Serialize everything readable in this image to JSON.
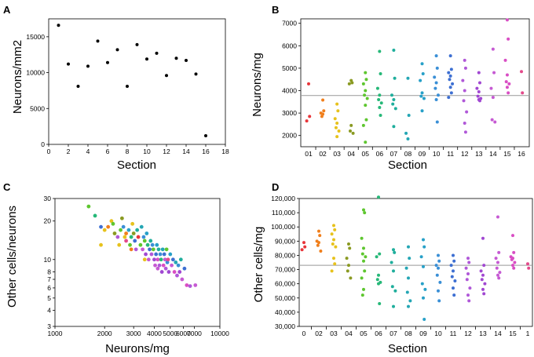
{
  "chart_data": [
    {
      "panel": "A",
      "type": "scatter",
      "xlabel": "Section",
      "ylabel": "Neurons/mm2",
      "xlim": [
        0,
        18
      ],
      "ylim": [
        0,
        17500
      ],
      "x_ticks": [
        "0",
        "2",
        "4",
        "6",
        "8",
        "10",
        "12",
        "14",
        "16",
        "18"
      ],
      "y_ticks": [
        "0",
        "5000",
        "10000",
        "15000"
      ],
      "color": "#000000",
      "x": [
        1,
        2,
        3,
        4,
        5,
        6,
        7,
        8,
        9,
        10,
        11,
        12,
        13,
        14,
        15,
        16
      ],
      "y": [
        16600,
        11200,
        8100,
        10900,
        14400,
        11400,
        13200,
        8100,
        13900,
        11900,
        12700,
        9600,
        12000,
        11700,
        9800,
        1200
      ]
    },
    {
      "panel": "B",
      "type": "scatter",
      "xlabel": "Section",
      "ylabel": "Neurons/mg",
      "ylim": [
        1500,
        7200
      ],
      "y_ticks": [
        "2000",
        "3000",
        "4000",
        "5000",
        "6000",
        "7000"
      ],
      "reference_line": 3780,
      "categories": [
        "01",
        "02",
        "03",
        "04",
        "05",
        "06",
        "07",
        "08",
        "09",
        "10",
        "11",
        "12",
        "13",
        "14",
        "15",
        "16"
      ],
      "colors": [
        "#e8353a",
        "#f07f1c",
        "#e7c21c",
        "#8a9a22",
        "#5ec62f",
        "#26b878",
        "#1fae9c",
        "#24a6b4",
        "#27a0c8",
        "#3a8fd6",
        "#3d6fd2",
        "#b058d8",
        "#a148d2",
        "#c65ad3",
        "#d94ec4",
        "#e34a8b"
      ],
      "series": [
        {
          "name": "01",
          "values": [
            4300,
            2850,
            2650
          ]
        },
        {
          "name": "02",
          "values": [
            3580,
            3100,
            3000,
            2950,
            2850
          ]
        },
        {
          "name": "03",
          "values": [
            3400,
            3100,
            2750,
            2550,
            2350,
            2200,
            1950
          ]
        },
        {
          "name": "04",
          "values": [
            4450,
            4350,
            4300,
            2450,
            2200,
            2100
          ]
        },
        {
          "name": "05",
          "values": [
            4800,
            4500,
            4300,
            4000,
            3800,
            3650,
            3350,
            2700,
            2450,
            1700
          ]
        },
        {
          "name": "06",
          "values": [
            5750,
            4750,
            4100,
            3800,
            3600,
            3450,
            3250,
            2900
          ]
        },
        {
          "name": "07",
          "values": [
            5800,
            4550,
            3800,
            3600,
            3400,
            3200,
            2400
          ]
        },
        {
          "name": "08",
          "values": [
            4550,
            2900,
            2100,
            1850
          ]
        },
        {
          "name": "09",
          "values": [
            5200,
            4750,
            4450,
            3900,
            3750,
            3650,
            3100
          ]
        },
        {
          "name": "10",
          "values": [
            5550,
            5000,
            4600,
            4350,
            4100,
            3800,
            3600,
            2600
          ]
        },
        {
          "name": "11",
          "values": [
            5550,
            4950,
            4800,
            4650,
            4500,
            4300,
            4150,
            3900,
            3700
          ]
        },
        {
          "name": "12",
          "values": [
            5350,
            5000,
            4450,
            4000,
            3550,
            3050,
            2550,
            2150
          ]
        },
        {
          "name": "13",
          "values": [
            4800,
            4350,
            4100,
            3950,
            3750,
            3650,
            3600,
            3550
          ]
        },
        {
          "name": "14",
          "values": [
            5850,
            4800,
            4100,
            3700,
            2700,
            2600
          ]
        },
        {
          "name": "15",
          "values": [
            7150,
            6300,
            5350,
            4700,
            4400,
            4300,
            4150,
            3900
          ]
        },
        {
          "name": "16",
          "values": [
            4850,
            3900
          ]
        }
      ]
    },
    {
      "panel": "C",
      "type": "scatter",
      "xscale": "log",
      "yscale": "log",
      "xlabel": "Neurons/mg",
      "ylabel": "Other cells/neurons",
      "xlim": [
        1000,
        10000
      ],
      "ylim": [
        3,
        30
      ],
      "x_ticks": [
        "1000",
        "2000",
        "3000",
        "4000",
        "5000",
        "6000",
        "7000",
        "10000"
      ],
      "y_ticks": [
        "3",
        "4",
        "5",
        "6",
        "7",
        "8",
        "10",
        "20",
        "30"
      ],
      "points": [
        [
          1600,
          26,
          "#5ec62f"
        ],
        [
          1750,
          22,
          "#26b878"
        ],
        [
          1900,
          18,
          "#3d6fd2"
        ],
        [
          2000,
          17,
          "#e7c21c"
        ],
        [
          1900,
          13,
          "#e7c21c"
        ],
        [
          2100,
          18,
          "#f07f1c"
        ],
        [
          2200,
          20,
          "#e7c21c"
        ],
        [
          2250,
          19,
          "#5ec62f"
        ],
        [
          2300,
          16,
          "#8a9a22"
        ],
        [
          2400,
          15,
          "#b058d8"
        ],
        [
          2450,
          13,
          "#e7c21c"
        ],
        [
          2500,
          17,
          "#5ec62f"
        ],
        [
          2550,
          21,
          "#8a9a22"
        ],
        [
          2600,
          18,
          "#3a8fd6"
        ],
        [
          2650,
          15,
          "#e7c21c"
        ],
        [
          2700,
          16,
          "#f07f1c"
        ],
        [
          2700,
          14,
          "#e34a8b"
        ],
        [
          2800,
          17,
          "#27a0c8"
        ],
        [
          2850,
          13,
          "#5ec62f"
        ],
        [
          2900,
          15,
          "#26b878"
        ],
        [
          2950,
          19,
          "#e7c21c"
        ],
        [
          3000,
          16,
          "#8a9a22"
        ],
        [
          3050,
          14,
          "#3d6fd2"
        ],
        [
          3100,
          12,
          "#b058d8"
        ],
        [
          3150,
          17,
          "#1fae9c"
        ],
        [
          3200,
          15,
          "#e8353a"
        ],
        [
          3300,
          13,
          "#5ec62f"
        ],
        [
          3350,
          18,
          "#24a6b4"
        ],
        [
          3400,
          12,
          "#c65ad3"
        ],
        [
          3450,
          15,
          "#3a8fd6"
        ],
        [
          3500,
          14,
          "#5ec62f"
        ],
        [
          3550,
          11,
          "#a148d2"
        ],
        [
          3600,
          16,
          "#27a0c8"
        ],
        [
          3650,
          13,
          "#26b878"
        ],
        [
          3700,
          10,
          "#c65ad3"
        ],
        [
          3750,
          12,
          "#3d6fd2"
        ],
        [
          3800,
          14,
          "#1fae9c"
        ],
        [
          3850,
          11,
          "#b058d8"
        ],
        [
          3900,
          13,
          "#3a8fd6"
        ],
        [
          3950,
          12,
          "#5ec62f"
        ],
        [
          4000,
          10,
          "#a148d2"
        ],
        [
          4050,
          9,
          "#c65ad3"
        ],
        [
          4100,
          11,
          "#3d6fd2"
        ],
        [
          4150,
          13,
          "#27a0c8"
        ],
        [
          4200,
          10,
          "#d94ec4"
        ],
        [
          4250,
          12,
          "#1fae9c"
        ],
        [
          4300,
          9,
          "#b058d8"
        ],
        [
          4350,
          11,
          "#3a8fd6"
        ],
        [
          4400,
          10,
          "#26b878"
        ],
        [
          4450,
          8,
          "#a148d2"
        ],
        [
          4500,
          12,
          "#24a6b4"
        ],
        [
          4550,
          9,
          "#d94ec4"
        ],
        [
          4600,
          11,
          "#3d6fd2"
        ],
        [
          4650,
          10,
          "#c65ad3"
        ],
        [
          4700,
          8.5,
          "#b058d8"
        ],
        [
          4750,
          12,
          "#5ec62f"
        ],
        [
          4800,
          9.5,
          "#3a8fd6"
        ],
        [
          4850,
          10,
          "#e34a8b"
        ],
        [
          4900,
          8,
          "#a148d2"
        ],
        [
          5000,
          11,
          "#27a0c8"
        ],
        [
          5100,
          9,
          "#c65ad3"
        ],
        [
          5200,
          10,
          "#3d6fd2"
        ],
        [
          5300,
          8,
          "#d94ec4"
        ],
        [
          5400,
          9.5,
          "#24a6b4"
        ],
        [
          5500,
          7.5,
          "#b058d8"
        ],
        [
          5600,
          9,
          "#3a8fd6"
        ],
        [
          5700,
          8,
          "#a148d2"
        ],
        [
          5800,
          10,
          "#1fae9c"
        ],
        [
          5900,
          7,
          "#c65ad3"
        ],
        [
          6100,
          8.5,
          "#3d6fd2"
        ],
        [
          6300,
          6.3,
          "#d94ec4"
        ],
        [
          6600,
          6.2,
          "#b058d8"
        ],
        [
          7100,
          6.3,
          "#c65ad3"
        ],
        [
          3500,
          10,
          "#e7c21c"
        ],
        [
          4200,
          8.5,
          "#c65ad3"
        ],
        [
          2900,
          12,
          "#f07f1c"
        ]
      ]
    },
    {
      "panel": "D",
      "type": "scatter",
      "xlabel": "Section",
      "ylabel": "Other cells/mg",
      "ylim": [
        30000,
        120000
      ],
      "y_ticks": [
        "30,000",
        "40,000",
        "50,000",
        "60,000",
        "70,000",
        "80,000",
        "90,000",
        "100,000",
        "110,000",
        "120,000"
      ],
      "reference_line": 73000,
      "categories": [
        "0",
        "02",
        "03",
        "04",
        "05",
        "06",
        "07",
        "08",
        "09",
        "10",
        "11",
        "12",
        "13",
        "14",
        "15",
        "1"
      ],
      "colors": [
        "#e8353a",
        "#f07f1c",
        "#e7c21c",
        "#8a9a22",
        "#5ec62f",
        "#26b878",
        "#1fae9c",
        "#24a6b4",
        "#27a0c8",
        "#3a8fd6",
        "#3d6fd2",
        "#b058d8",
        "#a148d2",
        "#c65ad3",
        "#d94ec4",
        "#e34a8b"
      ],
      "series": [
        {
          "name": "0",
          "values": [
            89000,
            86000,
            84000
          ]
        },
        {
          "name": "02",
          "values": [
            97000,
            94000,
            90000,
            89000,
            87000,
            83000
          ]
        },
        {
          "name": "03",
          "values": [
            101000,
            98000,
            95000,
            91000,
            88000,
            86000,
            78000,
            74000,
            69000
          ]
        },
        {
          "name": "04",
          "values": [
            88000,
            85000,
            78000,
            73000,
            69000,
            64000
          ]
        },
        {
          "name": "05",
          "values": [
            112000,
            110000,
            92000,
            85000,
            81000,
            79000,
            76000,
            69000,
            64000,
            56000,
            52000
          ]
        },
        {
          "name": "06",
          "values": [
            121000,
            81000,
            79000,
            66000,
            63000,
            61000,
            60000,
            46000
          ]
        },
        {
          "name": "07",
          "values": [
            84000,
            82000,
            75000,
            69000,
            58000,
            55000,
            44000
          ]
        },
        {
          "name": "08",
          "values": [
            86000,
            78000,
            71000,
            64000,
            54000,
            48000,
            44000
          ]
        },
        {
          "name": "09",
          "values": [
            91000,
            86000,
            79000,
            72000,
            60000,
            56000,
            50000,
            35000
          ]
        },
        {
          "name": "10",
          "values": [
            80000,
            76000,
            73000,
            71000,
            66000,
            61000,
            55000,
            48000
          ]
        },
        {
          "name": "11",
          "values": [
            80000,
            76000,
            73000,
            69000,
            65000,
            62000,
            57000,
            52000
          ]
        },
        {
          "name": "12",
          "values": [
            78000,
            75000,
            71000,
            67000,
            63000,
            57000,
            52000,
            48000
          ]
        },
        {
          "name": "13",
          "values": [
            92000,
            73000,
            69000,
            66000,
            63000,
            60000,
            56000,
            53000
          ]
        },
        {
          "name": "14",
          "values": [
            107000,
            82000,
            78000,
            75000,
            71000,
            68000,
            66000,
            64000
          ]
        },
        {
          "name": "15",
          "values": [
            94000,
            82000,
            79000,
            78000,
            77000,
            75000,
            73000,
            71000
          ]
        },
        {
          "name": "1",
          "values": [
            74000,
            71000
          ]
        }
      ]
    }
  ],
  "panel_labels": [
    "A",
    "B",
    "C",
    "D"
  ]
}
